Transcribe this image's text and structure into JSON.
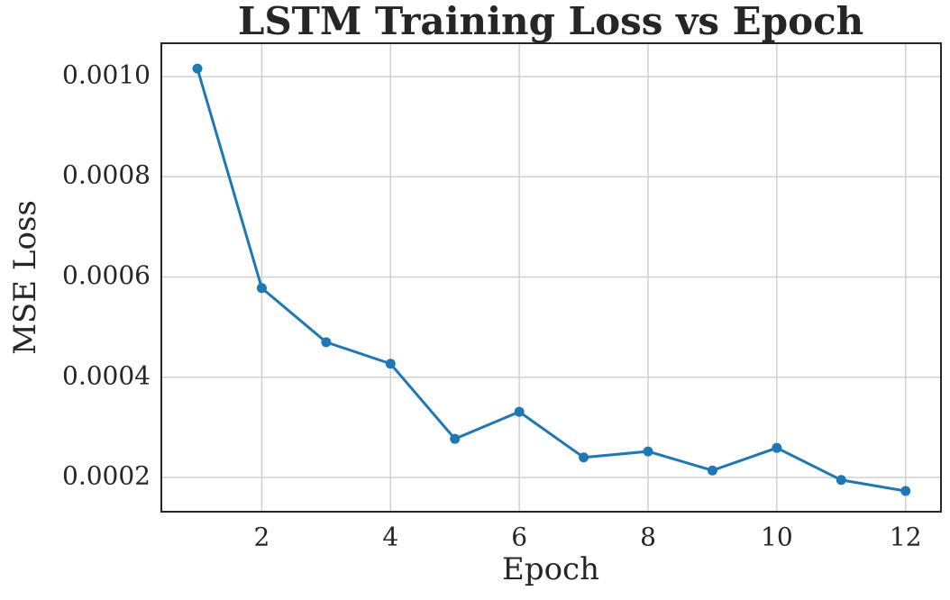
{
  "chart_data": {
    "type": "line",
    "title": "LSTM Training Loss vs Epoch",
    "x_label": "Epoch",
    "y_label": "MSE Loss",
    "x": [
      1,
      2,
      3,
      4,
      5,
      6,
      7,
      8,
      9,
      10,
      11,
      12
    ],
    "series": [
      {
        "name": "Training Loss",
        "color": "#1f77b4",
        "values": [
          0.001016,
          0.000578,
          0.00047,
          0.000427,
          0.000277,
          0.000331,
          0.00024,
          0.000252,
          0.000214,
          0.000259,
          0.000195,
          0.000173
        ]
      }
    ],
    "xlim": [
      0.44,
      12.55
    ],
    "xticks": [
      2,
      4,
      6,
      8,
      10,
      12
    ],
    "ylim": [
      0.0001317,
      0.0010665
    ],
    "yticks": [
      0.0002,
      0.0004,
      0.0006,
      0.0008,
      {
        "value": 0.001,
        "label": "0.0010"
      }
    ],
    "grid": true
  }
}
